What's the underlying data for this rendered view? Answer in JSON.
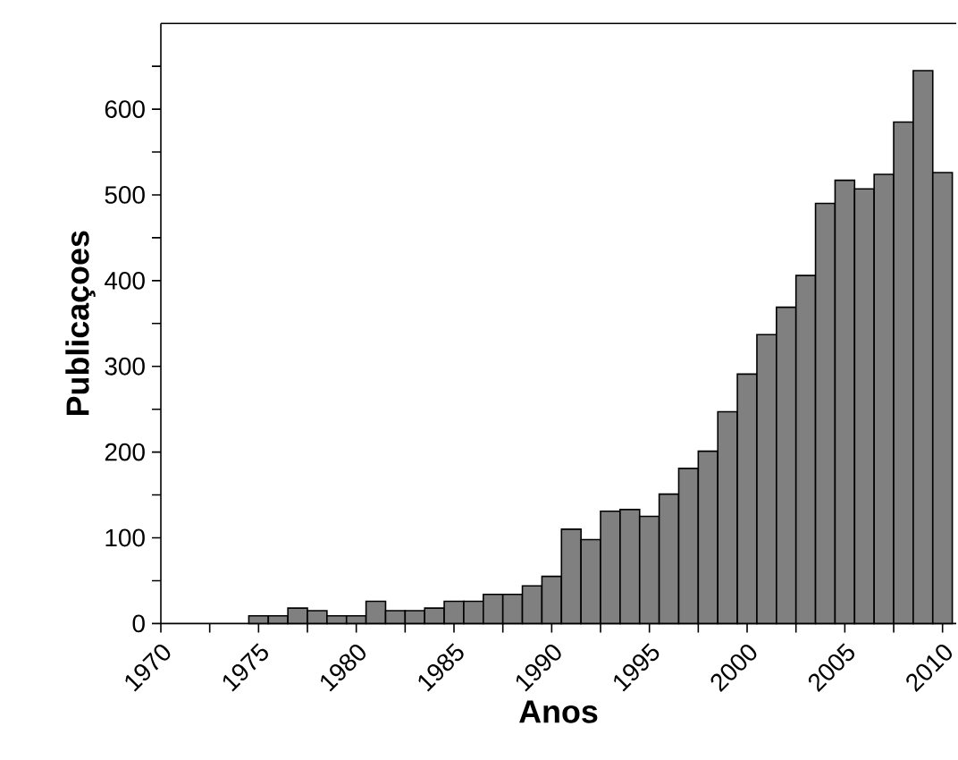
{
  "chart_data": {
    "type": "histogram",
    "xlabel": "Anos",
    "ylabel": "Publicaçoes",
    "color": "#808080",
    "bins": [
      1974.5,
      1975.5,
      1976.5,
      1977.5,
      1978.5,
      1979.5,
      1980.5,
      1981.5,
      1982.5,
      1983.5,
      1984.5,
      1985.5,
      1986.5,
      1987.5,
      1988.5,
      1989.5,
      1990.5,
      1991.5,
      1992.5,
      1993.5,
      1994.5,
      1995.5,
      1996.5,
      1997.5,
      1998.5,
      1999.5,
      2000.5,
      2001.5,
      2002.5,
      2003.5,
      2004.5,
      2005.5,
      2006.5,
      2007.5,
      2008.5,
      2009.5,
      2010.5
    ],
    "values": [
      9,
      9,
      18,
      15,
      9,
      9,
      26,
      15,
      15,
      18,
      26,
      26,
      34,
      34,
      44,
      55,
      110,
      98,
      131,
      133,
      125,
      151,
      181,
      201,
      247,
      291,
      337,
      369,
      406,
      490,
      517,
      507,
      524,
      585,
      645,
      526
    ],
    "xlim": [
      1970,
      2010.7
    ],
    "ylim": [
      0,
      700
    ],
    "xticks": [
      1970,
      {
        "value": 1972.5,
        "label": null
      },
      1975,
      {
        "value": 1977.5,
        "label": null
      },
      1980,
      {
        "value": 1982.5,
        "label": null
      },
      1985,
      {
        "value": 1987.5,
        "label": null
      },
      1990,
      {
        "value": 1992.5,
        "label": null
      },
      1995,
      {
        "value": 1997.5,
        "label": null
      },
      2000,
      {
        "value": 2002.5,
        "label": null
      },
      2005,
      {
        "value": 2007.5,
        "label": null
      },
      2010
    ],
    "yticks": [
      0,
      {
        "value": 50,
        "label": null
      },
      100,
      {
        "value": 150,
        "label": null
      },
      200,
      {
        "value": 250,
        "label": null
      },
      300,
      {
        "value": 350,
        "label": null
      },
      400,
      {
        "value": 450,
        "label": null
      },
      500,
      {
        "value": 550,
        "label": null
      },
      600,
      {
        "value": 650,
        "label": null
      }
    ]
  }
}
